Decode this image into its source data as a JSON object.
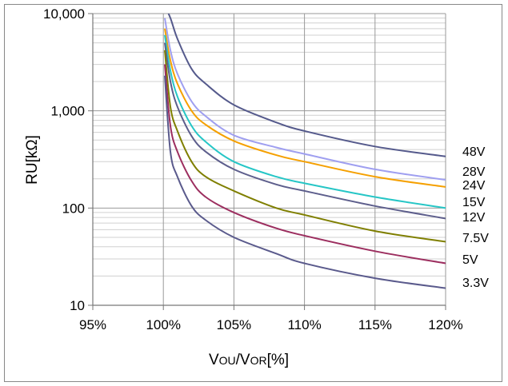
{
  "chart_data": {
    "type": "line",
    "xlabel": "VOU/VOR[%]",
    "ylabel": "RU[kΩ]",
    "x_scale": "linear",
    "y_scale": "log",
    "xlim": [
      95,
      120
    ],
    "ylim": [
      10,
      10000
    ],
    "x_tick_labels": [
      "95%",
      "100%",
      "105%",
      "110%",
      "115%",
      "120%"
    ],
    "y_tick_labels": [
      "10",
      "100",
      "1,000",
      "10,000"
    ],
    "grid": true,
    "series": [
      {
        "name": "48V",
        "color": "#555a8c",
        "x": [
          100.1,
          100.5,
          101,
          102,
          103,
          105,
          108,
          110,
          115,
          120
        ],
        "y": [
          12000,
          9000,
          5500,
          2700,
          1900,
          1150,
          760,
          620,
          430,
          340
        ]
      },
      {
        "name": "28V",
        "color": "#9f9ff0",
        "x": [
          100.1,
          100.5,
          101,
          102,
          103,
          105,
          108,
          110,
          115,
          120
        ],
        "y": [
          9000,
          4200,
          2400,
          1250,
          880,
          560,
          420,
          360,
          250,
          195
        ]
      },
      {
        "name": "24V",
        "color": "#f5a000",
        "x": [
          100.1,
          100.5,
          101,
          102,
          103,
          105,
          108,
          110,
          115,
          120
        ],
        "y": [
          7000,
          3300,
          1900,
          1000,
          720,
          490,
          350,
          300,
          210,
          165
        ]
      },
      {
        "name": "15V",
        "color": "#26c6c6",
        "x": [
          100.1,
          100.5,
          101,
          102,
          103,
          105,
          108,
          110,
          115,
          120
        ],
        "y": [
          6000,
          2600,
          1400,
          700,
          480,
          300,
          210,
          180,
          130,
          100
        ]
      },
      {
        "name": "12V",
        "color": "#5d5e8c",
        "x": [
          100.1,
          100.5,
          101,
          102,
          103,
          105,
          108,
          110,
          115,
          120
        ],
        "y": [
          5000,
          2000,
          1100,
          550,
          380,
          250,
          175,
          150,
          105,
          78
        ]
      },
      {
        "name": "7.5V",
        "color": "#7f7f00",
        "x": [
          100.1,
          100.5,
          101,
          102,
          103,
          105,
          108,
          110,
          115,
          120
        ],
        "y": [
          4200,
          1100,
          620,
          300,
          210,
          150,
          100,
          85,
          58,
          45
        ]
      },
      {
        "name": "5V",
        "color": "#9c2e5f",
        "x": [
          100.1,
          100.5,
          101,
          102,
          103,
          105,
          108,
          110,
          115,
          120
        ],
        "y": [
          3000,
          700,
          380,
          190,
          130,
          90,
          62,
          52,
          36,
          27
        ]
      },
      {
        "name": "3.3V",
        "color": "#5a5a8c",
        "x": [
          100.1,
          100.5,
          101,
          102,
          103,
          105,
          108,
          110,
          115,
          120
        ],
        "y": [
          2300,
          380,
          210,
          105,
          75,
          50,
          34,
          27,
          19,
          15
        ]
      }
    ]
  }
}
